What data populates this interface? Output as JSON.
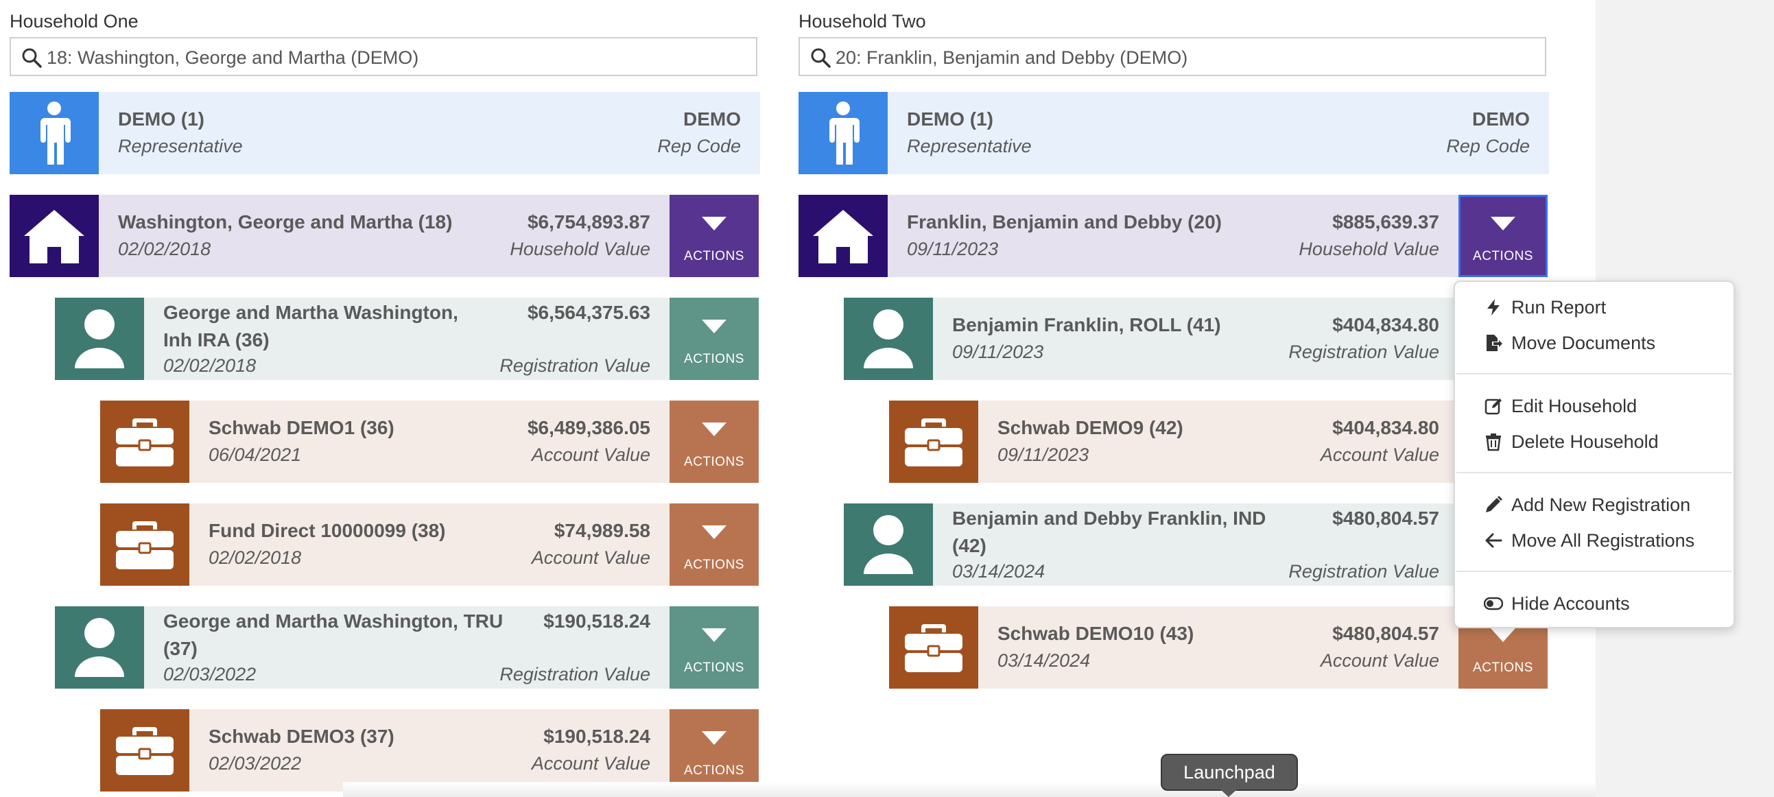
{
  "household_one": {
    "label": "Household One",
    "search_value": "18: Washington, George and Martha (DEMO)",
    "rep": {
      "name": "DEMO (1)",
      "role": "Representative",
      "code": "DEMO",
      "code_label": "Rep Code"
    },
    "household": {
      "name": "Washington, George and Martha (18)",
      "date": "02/02/2018",
      "value": "$6,754,893.87",
      "value_label": "Household Value",
      "actions": "ACTIONS"
    },
    "rows": [
      {
        "kind": "registration",
        "name_line1": "George and Martha Washington,",
        "name_line2": "Inh IRA (36)",
        "date": "02/02/2018",
        "value": "$6,564,375.63",
        "value_label": "Registration Value",
        "actions": "ACTIONS"
      },
      {
        "kind": "account",
        "name": "Schwab DEMO1 (36)",
        "date": "06/04/2021",
        "value": "$6,489,386.05",
        "value_label": "Account Value",
        "actions": "ACTIONS"
      },
      {
        "kind": "account",
        "name": "Fund Direct 10000099 (38)",
        "date": "02/02/2018",
        "value": "$74,989.58",
        "value_label": "Account Value",
        "actions": "ACTIONS"
      },
      {
        "kind": "registration",
        "name_line1": "George and Martha Washington, TRU",
        "name_line2": "(37)",
        "date": "02/03/2022",
        "value": "$190,518.24",
        "value_label": "Registration Value",
        "actions": "ACTIONS"
      },
      {
        "kind": "account",
        "name": "Schwab DEMO3 (37)",
        "date": "02/03/2022",
        "value": "$190,518.24",
        "value_label": "Account Value",
        "actions": "ACTIONS"
      }
    ]
  },
  "household_two": {
    "label": "Household Two",
    "search_value": "20: Franklin, Benjamin and Debby (DEMO)",
    "rep": {
      "name": "DEMO (1)",
      "role": "Representative",
      "code": "DEMO",
      "code_label": "Rep Code"
    },
    "household": {
      "name": "Franklin, Benjamin and Debby (20)",
      "date": "09/11/2023",
      "value": "$885,639.37",
      "value_label": "Household Value",
      "actions": "ACTIONS"
    },
    "rows": [
      {
        "kind": "registration",
        "name": "Benjamin Franklin, ROLL (41)",
        "date": "09/11/2023",
        "value": "$404,834.80",
        "value_label": "Registration Value"
      },
      {
        "kind": "account",
        "name": "Schwab DEMO9 (42)",
        "date": "09/11/2023",
        "value": "$404,834.80",
        "value_label": "Account Value"
      },
      {
        "kind": "registration",
        "name_line1": "Benjamin and Debby Franklin, IND",
        "name_line2": "(42)",
        "date": "03/14/2024",
        "value": "$480,804.57",
        "value_label": "Registration Value"
      },
      {
        "kind": "account",
        "name": "Schwab DEMO10 (43)",
        "date": "03/14/2024",
        "value": "$480,804.57",
        "value_label": "Account Value",
        "actions": "ACTIONS"
      }
    ]
  },
  "actions_menu": {
    "items": [
      {
        "label": "Run Report",
        "icon": "bolt-icon"
      },
      {
        "label": "Move Documents",
        "icon": "file-export-icon"
      },
      {
        "label": "Edit Household",
        "icon": "edit-icon"
      },
      {
        "label": "Delete Household",
        "icon": "trash-icon"
      },
      {
        "label": "Add New Registration",
        "icon": "pencil-icon"
      },
      {
        "label": "Move All Registrations",
        "icon": "arrow-left-icon"
      },
      {
        "label": "Hide Accounts",
        "icon": "toggle-icon"
      }
    ]
  },
  "tooltip": {
    "text": "Launchpad"
  },
  "colors": {
    "rep_tile": "#3a87e6",
    "household_tile": "#2a0f6e",
    "registration_tile": "#3e7a70",
    "account_tile": "#a0501e",
    "household_actions": "#56348f",
    "registration_actions": "#5f9488",
    "account_actions": "#b87450"
  }
}
